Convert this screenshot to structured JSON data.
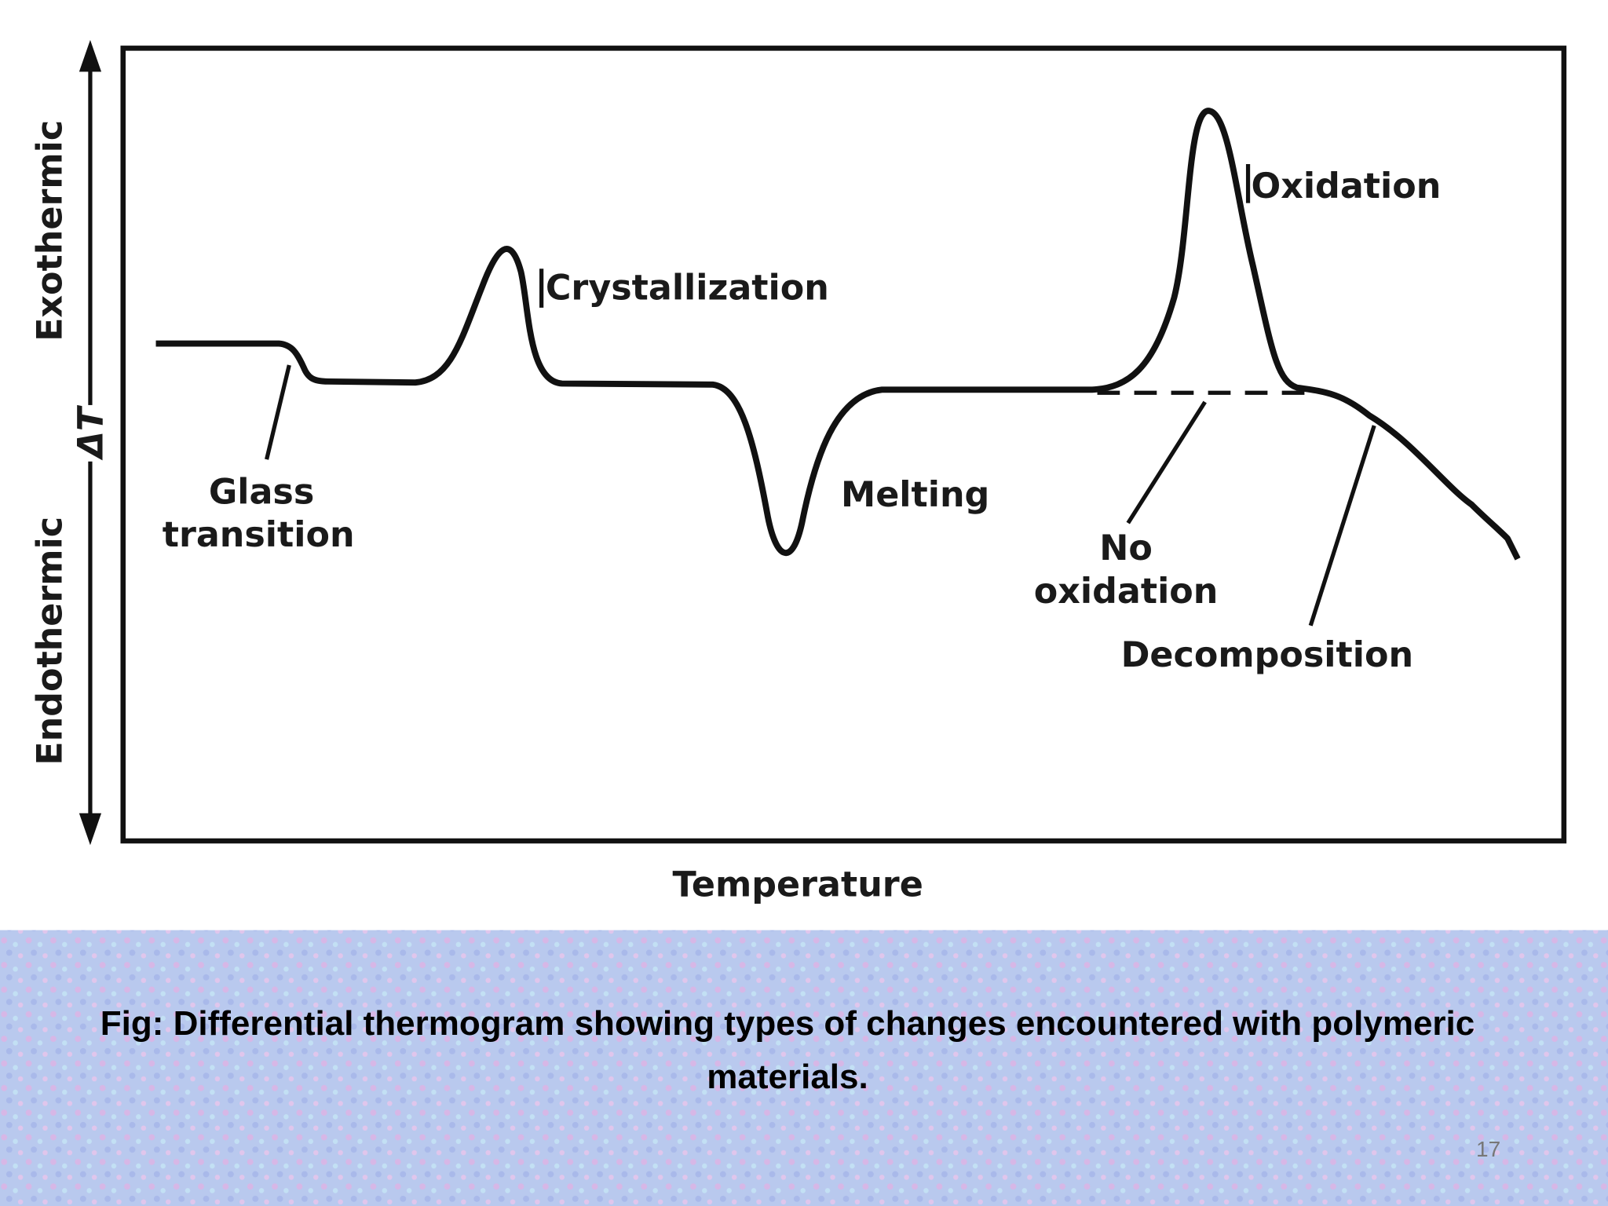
{
  "diagram": {
    "y_axis": {
      "top": "Exothermic",
      "middle": "ΔT",
      "bottom": "Endothermic"
    },
    "x_axis": "Temperature",
    "labels": {
      "glass_transition": [
        "Glass",
        "transition"
      ],
      "crystallization": "Crystallization",
      "melting": "Melting",
      "oxidation": "Oxidation",
      "no_oxidation": [
        "No",
        "oxidation"
      ],
      "decomposition": "Decomposition"
    }
  },
  "caption": "Fig: Differential thermogram showing types of changes encountered with polymeric materials.",
  "page_number": "17"
}
